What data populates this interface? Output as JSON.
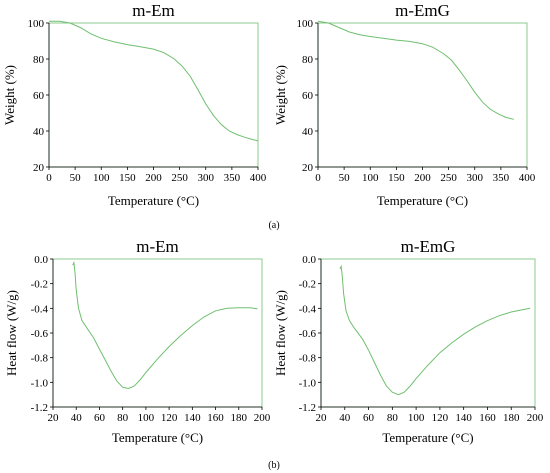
{
  "chart_data": [
    {
      "type": "line",
      "title": "m-Em",
      "xlabel": "Temperature (°C)",
      "ylabel": "Weight (%)",
      "xlim": [
        0,
        400
      ],
      "ylim": [
        20,
        100
      ],
      "xticks": [
        0,
        50,
        100,
        150,
        200,
        250,
        300,
        350,
        400
      ],
      "yticks": [
        20,
        40,
        60,
        80,
        100
      ],
      "line_color": "#6fbf6f",
      "frame_color": "#8cc88c",
      "series": [
        {
          "x": [
            0,
            20,
            40,
            60,
            80,
            100,
            125,
            150,
            175,
            200,
            220,
            240,
            255,
            270,
            285,
            300,
            315,
            330,
            345,
            360,
            375,
            390,
            400
          ],
          "y": [
            101,
            101,
            100,
            97.5,
            94,
            91.5,
            89.5,
            88,
            86.8,
            85.5,
            83.5,
            80,
            76,
            70.5,
            63,
            55,
            48.5,
            43.5,
            40,
            38,
            36.5,
            35.2,
            34.5
          ]
        }
      ]
    },
    {
      "type": "line",
      "title": "m-EmG",
      "xlabel": "Temperature (°C)",
      "ylabel": "Weight (%)",
      "xlim": [
        0,
        400
      ],
      "ylim": [
        20,
        100
      ],
      "xticks": [
        0,
        50,
        100,
        150,
        200,
        250,
        300,
        350,
        400
      ],
      "yticks": [
        20,
        40,
        60,
        80,
        100
      ],
      "line_color": "#6fbf6f",
      "frame_color": "#8cc88c",
      "series": [
        {
          "x": [
            0,
            20,
            40,
            60,
            80,
            100,
            125,
            150,
            175,
            200,
            220,
            240,
            255,
            270,
            285,
            300,
            315,
            330,
            345,
            360,
            375
          ],
          "y": [
            101,
            100,
            97.5,
            95,
            93.5,
            92.5,
            91.5,
            90.5,
            89.8,
            88.5,
            86.5,
            83,
            79.5,
            74,
            68,
            61.5,
            56,
            52,
            49.5,
            47.5,
            46.5
          ]
        }
      ]
    },
    {
      "type": "line",
      "title": "m-Em",
      "xlabel": "Temperature (°C)",
      "ylabel": "Heat flow (W/g)",
      "xlim": [
        20,
        200
      ],
      "ylim": [
        -1.2,
        0
      ],
      "xticks": [
        20,
        40,
        60,
        80,
        100,
        120,
        140,
        160,
        180,
        200
      ],
      "yticks": [
        0.0,
        -0.2,
        -0.4,
        -0.6,
        -0.8,
        -1.0,
        -1.2
      ],
      "line_color": "#6fbf6f",
      "frame_color": "#8cc88c",
      "series": [
        {
          "x": [
            37,
            38,
            39,
            40,
            42,
            45,
            50,
            55,
            60,
            65,
            70,
            75,
            80,
            85,
            90,
            95,
            100,
            110,
            120,
            130,
            140,
            150,
            160,
            170,
            180,
            190,
            196
          ],
          "y": [
            -0.05,
            -0.03,
            -0.12,
            -0.25,
            -0.4,
            -0.5,
            -0.57,
            -0.64,
            -0.73,
            -0.82,
            -0.91,
            -0.99,
            -1.04,
            -1.05,
            -1.03,
            -0.98,
            -0.92,
            -0.81,
            -0.71,
            -0.62,
            -0.54,
            -0.47,
            -0.42,
            -0.4,
            -0.395,
            -0.395,
            -0.405
          ]
        }
      ]
    },
    {
      "type": "line",
      "title": "m-EmG",
      "xlabel": "Temperature (°C)",
      "ylabel": "Heat flow (W/g)",
      "xlim": [
        20,
        200
      ],
      "ylim": [
        -1.2,
        0
      ],
      "xticks": [
        20,
        40,
        60,
        80,
        100,
        120,
        140,
        160,
        180,
        200
      ],
      "yticks": [
        0.0,
        -0.2,
        -0.4,
        -0.6,
        -0.8,
        -1.0,
        -1.2
      ],
      "line_color": "#6fbf6f",
      "frame_color": "#8cc88c",
      "series": [
        {
          "x": [
            36,
            37,
            38,
            39,
            41,
            44,
            48,
            55,
            60,
            65,
            70,
            75,
            80,
            85,
            90,
            95,
            100,
            110,
            120,
            130,
            140,
            150,
            160,
            170,
            180,
            190,
            196
          ],
          "y": [
            -0.08,
            -0.06,
            -0.15,
            -0.28,
            -0.42,
            -0.5,
            -0.56,
            -0.65,
            -0.74,
            -0.84,
            -0.94,
            -1.03,
            -1.08,
            -1.1,
            -1.08,
            -1.03,
            -0.97,
            -0.86,
            -0.76,
            -0.68,
            -0.61,
            -0.55,
            -0.5,
            -0.46,
            -0.43,
            -0.41,
            -0.4
          ]
        }
      ]
    }
  ],
  "captions": {
    "a": "(a)",
    "b": "(b)"
  }
}
